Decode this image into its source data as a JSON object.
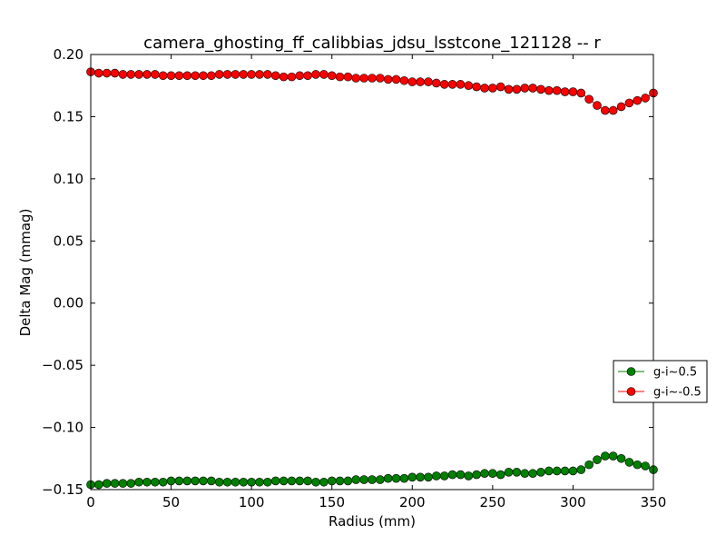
{
  "chart_data": {
    "type": "line",
    "title": "camera_ghosting_ff_calibbias_jdsu_lsstcone_121128 -- r",
    "xlabel": "Radius (mm)",
    "ylabel": "Delta Mag (mmag)",
    "xlim": [
      0,
      350
    ],
    "ylim": [
      -0.15,
      0.2
    ],
    "x_ticks": [
      "0",
      "50",
      "100",
      "150",
      "200",
      "250",
      "300",
      "350"
    ],
    "y_ticks": [
      "−0.15",
      "−0.10",
      "−0.05",
      "0.00",
      "0.05",
      "0.10",
      "0.15",
      "0.20"
    ],
    "x_tick_values": [
      0,
      50,
      100,
      150,
      200,
      250,
      300,
      350
    ],
    "y_tick_values": [
      -0.15,
      -0.1,
      -0.05,
      0.0,
      0.05,
      0.1,
      0.15,
      0.2
    ],
    "grid": false,
    "legend_position": "center-right",
    "series": [
      {
        "name": "g-i~0.5",
        "color": "#008000",
        "marker": "circle",
        "x": [
          0,
          5,
          10,
          15,
          20,
          25,
          30,
          35,
          40,
          45,
          50,
          55,
          60,
          65,
          70,
          75,
          80,
          85,
          90,
          95,
          100,
          105,
          110,
          115,
          120,
          125,
          130,
          135,
          140,
          145,
          150,
          155,
          160,
          165,
          170,
          175,
          180,
          185,
          190,
          195,
          200,
          205,
          210,
          215,
          220,
          225,
          230,
          235,
          240,
          245,
          250,
          255,
          260,
          265,
          270,
          275,
          280,
          285,
          290,
          295,
          300,
          305,
          310,
          315,
          320,
          325,
          330,
          335,
          340,
          345,
          350
        ],
        "y": [
          -0.146,
          -0.146,
          -0.145,
          -0.145,
          -0.145,
          -0.145,
          -0.144,
          -0.144,
          -0.144,
          -0.144,
          -0.143,
          -0.143,
          -0.143,
          -0.143,
          -0.143,
          -0.143,
          -0.144,
          -0.144,
          -0.144,
          -0.144,
          -0.144,
          -0.144,
          -0.144,
          -0.143,
          -0.143,
          -0.143,
          -0.143,
          -0.143,
          -0.144,
          -0.144,
          -0.143,
          -0.143,
          -0.143,
          -0.142,
          -0.142,
          -0.142,
          -0.142,
          -0.141,
          -0.141,
          -0.141,
          -0.14,
          -0.14,
          -0.14,
          -0.139,
          -0.139,
          -0.138,
          -0.138,
          -0.139,
          -0.138,
          -0.137,
          -0.137,
          -0.138,
          -0.136,
          -0.136,
          -0.137,
          -0.137,
          -0.136,
          -0.135,
          -0.135,
          -0.135,
          -0.135,
          -0.134,
          -0.13,
          -0.126,
          -0.123,
          -0.123,
          -0.125,
          -0.128,
          -0.13,
          -0.131,
          -0.134
        ]
      },
      {
        "name": "g-i~-0.5",
        "color": "#ff0000",
        "marker": "circle",
        "x": [
          0,
          5,
          10,
          15,
          20,
          25,
          30,
          35,
          40,
          45,
          50,
          55,
          60,
          65,
          70,
          75,
          80,
          85,
          90,
          95,
          100,
          105,
          110,
          115,
          120,
          125,
          130,
          135,
          140,
          145,
          150,
          155,
          160,
          165,
          170,
          175,
          180,
          185,
          190,
          195,
          200,
          205,
          210,
          215,
          220,
          225,
          230,
          235,
          240,
          245,
          250,
          255,
          260,
          265,
          270,
          275,
          280,
          285,
          290,
          295,
          300,
          305,
          310,
          315,
          320,
          325,
          330,
          335,
          340,
          345,
          350
        ],
        "y": [
          0.186,
          0.185,
          0.185,
          0.185,
          0.184,
          0.184,
          0.184,
          0.184,
          0.184,
          0.183,
          0.183,
          0.183,
          0.183,
          0.183,
          0.183,
          0.183,
          0.184,
          0.184,
          0.184,
          0.184,
          0.184,
          0.184,
          0.184,
          0.183,
          0.182,
          0.182,
          0.183,
          0.183,
          0.184,
          0.184,
          0.183,
          0.182,
          0.182,
          0.181,
          0.181,
          0.181,
          0.181,
          0.18,
          0.18,
          0.179,
          0.178,
          0.178,
          0.178,
          0.177,
          0.176,
          0.176,
          0.176,
          0.175,
          0.174,
          0.173,
          0.173,
          0.174,
          0.172,
          0.172,
          0.173,
          0.173,
          0.172,
          0.171,
          0.171,
          0.17,
          0.17,
          0.169,
          0.164,
          0.159,
          0.155,
          0.155,
          0.158,
          0.161,
          0.163,
          0.165,
          0.169
        ]
      }
    ]
  }
}
